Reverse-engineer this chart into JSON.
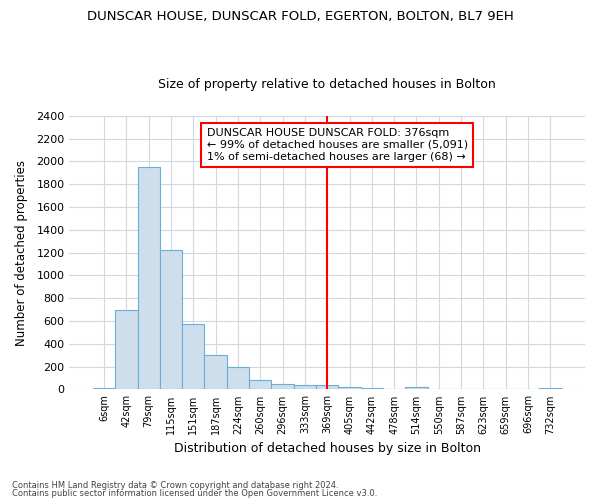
{
  "title_line1": "DUNSCAR HOUSE, DUNSCAR FOLD, EGERTON, BOLTON, BL7 9EH",
  "title_line2": "Size of property relative to detached houses in Bolton",
  "xlabel": "Distribution of detached houses by size in Bolton",
  "ylabel": "Number of detached properties",
  "bar_color": "#cfdeed",
  "bar_edge_color": "#6aaed6",
  "categories": [
    "6sqm",
    "42sqm",
    "79sqm",
    "115sqm",
    "151sqm",
    "187sqm",
    "224sqm",
    "260sqm",
    "296sqm",
    "333sqm",
    "369sqm",
    "405sqm",
    "442sqm",
    "478sqm",
    "514sqm",
    "550sqm",
    "587sqm",
    "623sqm",
    "659sqm",
    "696sqm",
    "732sqm"
  ],
  "values": [
    15,
    700,
    1950,
    1220,
    570,
    300,
    200,
    80,
    50,
    35,
    35,
    25,
    10,
    5,
    25,
    3,
    3,
    3,
    3,
    3,
    15
  ],
  "vline_index": 10,
  "vline_color": "red",
  "annotation_text": "DUNSCAR HOUSE DUNSCAR FOLD: 376sqm\n← 99% of detached houses are smaller (5,091)\n1% of semi-detached houses are larger (68) →",
  "annotation_box_color": "white",
  "annotation_edge_color": "red",
  "ylim": [
    0,
    2400
  ],
  "yticks": [
    0,
    200,
    400,
    600,
    800,
    1000,
    1200,
    1400,
    1600,
    1800,
    2000,
    2200,
    2400
  ],
  "footer_line1": "Contains HM Land Registry data © Crown copyright and database right 2024.",
  "footer_line2": "Contains public sector information licensed under the Open Government Licence v3.0.",
  "bg_color": "#ffffff",
  "plot_bg_color": "#ffffff",
  "grid_color": "#d0d8e4"
}
